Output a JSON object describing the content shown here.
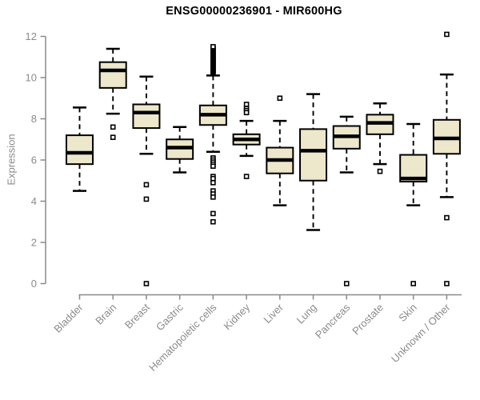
{
  "chart_data": {
    "type": "boxplot",
    "title": "ENSG00000236901 - MIR600HG",
    "ylabel": "Expression",
    "xlabel": "",
    "ylim": [
      0,
      12
    ],
    "yticks": [
      0,
      2,
      4,
      6,
      8,
      10,
      12
    ],
    "grid": false,
    "legend": null,
    "categories": [
      "Bladder",
      "Brain",
      "Breast",
      "Gastric",
      "Hematopoietic cells",
      "Kidney",
      "Liver",
      "Lung",
      "Pancreas",
      "Prostate",
      "Skin",
      "Unknown / Other"
    ],
    "boxes": [
      {
        "category": "Bladder",
        "whisker_low": 4.5,
        "q1": 5.8,
        "median": 6.35,
        "q3": 7.2,
        "whisker_high": 8.55,
        "outliers": []
      },
      {
        "category": "Brain",
        "whisker_low": 8.25,
        "q1": 9.5,
        "median": 10.35,
        "q3": 10.75,
        "whisker_high": 11.4,
        "outliers": [
          7.6,
          7.1
        ]
      },
      {
        "category": "Breast",
        "whisker_low": 6.3,
        "q1": 7.55,
        "median": 8.3,
        "q3": 8.7,
        "whisker_high": 10.05,
        "outliers": [
          4.8,
          4.1,
          0
        ]
      },
      {
        "category": "Gastric",
        "whisker_low": 5.4,
        "q1": 6.05,
        "median": 6.6,
        "q3": 7.0,
        "whisker_high": 7.6,
        "outliers": []
      },
      {
        "category": "Hematopoietic cells",
        "whisker_low": 6.4,
        "q1": 7.7,
        "median": 8.2,
        "q3": 8.65,
        "whisker_high": 10.1,
        "outliers": [
          10.2,
          10.25,
          10.3,
          10.35,
          10.4,
          10.45,
          10.5,
          10.55,
          10.6,
          10.65,
          10.7,
          10.75,
          10.8,
          10.85,
          10.9,
          10.95,
          11.0,
          11.05,
          11.1,
          11.15,
          11.2,
          11.25,
          11.3,
          11.35,
          11.4,
          11.45,
          11.5,
          6.1,
          6.0,
          5.9,
          5.8,
          5.7,
          5.2,
          5.1,
          4.9,
          4.5,
          4.35,
          4.2,
          3.4,
          3.0
        ]
      },
      {
        "category": "Kidney",
        "whisker_low": 6.2,
        "q1": 6.75,
        "median": 7.0,
        "q3": 7.25,
        "whisker_high": 7.9,
        "outliers": [
          8.7,
          8.5,
          8.4,
          8.3,
          5.2
        ]
      },
      {
        "category": "Liver",
        "whisker_low": 3.8,
        "q1": 5.35,
        "median": 6.0,
        "q3": 6.6,
        "whisker_high": 7.9,
        "outliers": [
          9.0
        ]
      },
      {
        "category": "Lung",
        "whisker_low": 2.6,
        "q1": 5.0,
        "median": 6.45,
        "q3": 7.5,
        "whisker_high": 9.2,
        "outliers": []
      },
      {
        "category": "Pancreas",
        "whisker_low": 5.4,
        "q1": 6.55,
        "median": 7.15,
        "q3": 7.65,
        "whisker_high": 8.1,
        "outliers": [
          0
        ]
      },
      {
        "category": "Prostate",
        "whisker_low": 5.8,
        "q1": 7.25,
        "median": 7.8,
        "q3": 8.2,
        "whisker_high": 8.75,
        "outliers": [
          5.45
        ]
      },
      {
        "category": "Skin",
        "whisker_low": 3.8,
        "q1": 4.95,
        "median": 5.1,
        "q3": 6.25,
        "whisker_high": 7.75,
        "outliers": [
          0
        ]
      },
      {
        "category": "Unknown / Other",
        "whisker_low": 4.2,
        "q1": 6.3,
        "median": 7.05,
        "q3": 7.95,
        "whisker_high": 10.15,
        "outliers": [
          12.1,
          3.2,
          0
        ]
      }
    ],
    "colors": {
      "box_fill": "#EDE7CB",
      "box_border": "#000000",
      "median": "#000000",
      "whisker": "#000000",
      "outlier_fill": "#FFFFFF",
      "axis": "#8A8A8A",
      "tick_label": "#8B8B8B",
      "title": "#000000"
    }
  }
}
